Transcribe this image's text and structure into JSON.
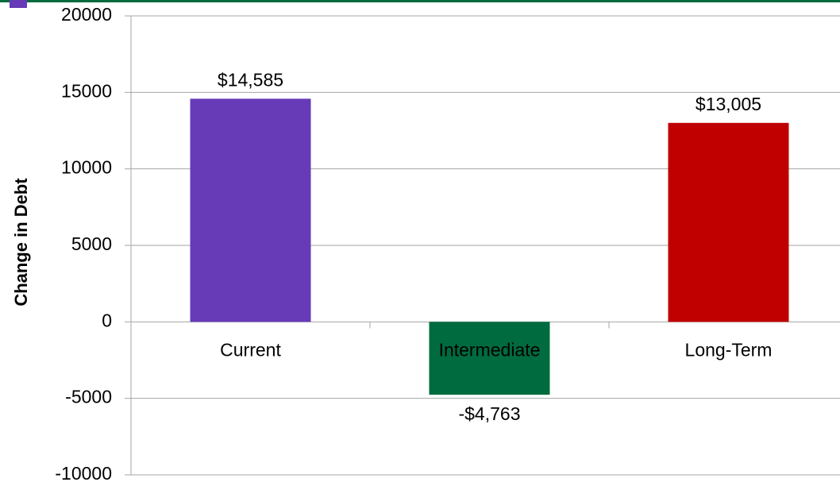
{
  "chart_data": {
    "type": "bar",
    "y_label": "Change in Debt",
    "categories": [
      "Current",
      "Intermediate",
      "Long-Term"
    ],
    "values": [
      14585,
      -4763,
      13005
    ],
    "value_labels": [
      "$14,585",
      "-$4,763",
      "$13,005"
    ],
    "colors": [
      "#673ab7",
      "#006b3f",
      "#c00000"
    ],
    "ylim": [
      -10000,
      20000
    ],
    "yticks": [
      -10000,
      -5000,
      0,
      5000,
      10000,
      15000,
      20000
    ],
    "grid": true
  }
}
